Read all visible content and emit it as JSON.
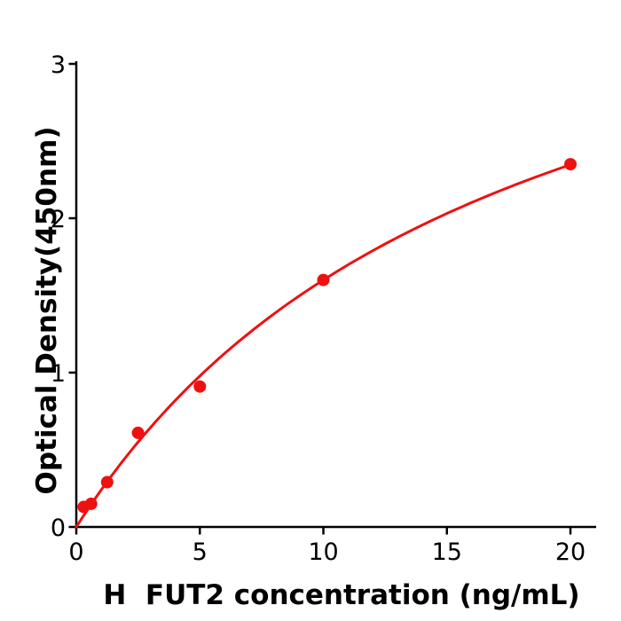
{
  "figure": {
    "background_color": "#ffffff",
    "axis_color": "#000000",
    "accent_color": "#ee1111"
  },
  "chart_data": {
    "type": "scatter",
    "title": "",
    "xlabel": "H  FUT2 concentration (ng/mL)",
    "ylabel": "Optical Density(450nm)",
    "x": [
      0.3,
      0.6,
      1.25,
      2.5,
      5,
      10,
      20
    ],
    "y": [
      0.13,
      0.15,
      0.29,
      0.61,
      0.91,
      1.6,
      2.35
    ],
    "xlim": [
      0,
      21
    ],
    "ylim": [
      0,
      3
    ],
    "xticks": [
      0,
      5,
      10,
      15,
      20
    ],
    "yticks": [
      0,
      1,
      2,
      3
    ],
    "grid": false,
    "legend": "none",
    "marker_color": "#ee1111",
    "line_color": "#ee1111",
    "fit_curve": {
      "type": "saturation",
      "formula": "y = a*x/(x+b)",
      "a": 4.4,
      "b": 17.5,
      "x_start": 0,
      "x_end": 20
    }
  }
}
